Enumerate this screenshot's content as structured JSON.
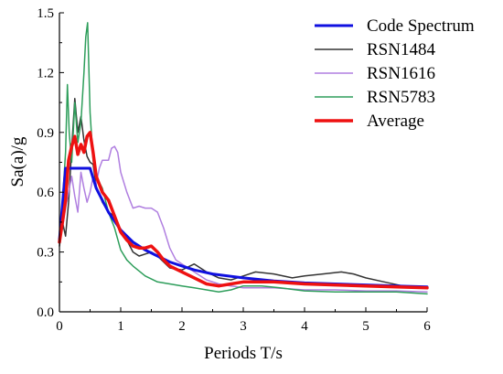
{
  "chart_data": {
    "type": "line",
    "title": "",
    "xlabel": "Periods T/s",
    "ylabel": "Sa(a)/g",
    "xlim": [
      0,
      6
    ],
    "ylim": [
      0,
      1.5
    ],
    "xticks": [
      "0",
      "1",
      "2",
      "3",
      "4",
      "5",
      "6"
    ],
    "yticks": [
      "0.0",
      "0.3",
      "0.6",
      "0.9",
      "1.2",
      "1.5"
    ],
    "grid": false,
    "legend": "top-right",
    "series": [
      {
        "name": "Code Spectrum",
        "color": "#1010e0",
        "width": 3,
        "x": [
          0,
          0.1,
          0.15,
          0.5,
          0.6,
          0.8,
          1.0,
          1.2,
          1.4,
          1.6,
          1.8,
          2.0,
          2.2,
          2.5,
          3.0,
          3.5,
          4.0,
          4.5,
          5.0,
          5.5,
          6.0
        ],
        "y": [
          0.36,
          0.72,
          0.72,
          0.72,
          0.62,
          0.5,
          0.41,
          0.35,
          0.31,
          0.28,
          0.25,
          0.23,
          0.21,
          0.19,
          0.17,
          0.155,
          0.145,
          0.14,
          0.135,
          0.13,
          0.125
        ]
      },
      {
        "name": "RSN1484",
        "color": "#333333",
        "width": 1.5,
        "x": [
          0,
          0.05,
          0.1,
          0.15,
          0.2,
          0.25,
          0.3,
          0.35,
          0.4,
          0.45,
          0.5,
          0.55,
          0.6,
          0.7,
          0.8,
          0.9,
          1.0,
          1.1,
          1.2,
          1.3,
          1.4,
          1.5,
          1.6,
          1.8,
          2.0,
          2.2,
          2.4,
          2.6,
          2.8,
          3.0,
          3.2,
          3.5,
          3.8,
          4.0,
          4.3,
          4.6,
          4.8,
          5.0,
          5.3,
          5.6,
          6.0
        ],
        "y": [
          0.33,
          0.45,
          0.38,
          0.55,
          0.82,
          1.07,
          0.9,
          0.98,
          0.86,
          0.78,
          0.75,
          0.74,
          0.63,
          0.55,
          0.5,
          0.48,
          0.4,
          0.36,
          0.3,
          0.28,
          0.29,
          0.3,
          0.28,
          0.22,
          0.21,
          0.24,
          0.2,
          0.17,
          0.16,
          0.18,
          0.2,
          0.19,
          0.17,
          0.18,
          0.19,
          0.2,
          0.19,
          0.17,
          0.15,
          0.13,
          0.12
        ]
      },
      {
        "name": "RSN1616",
        "color": "#b07fe0",
        "width": 1.5,
        "x": [
          0,
          0.05,
          0.1,
          0.15,
          0.2,
          0.25,
          0.3,
          0.35,
          0.4,
          0.45,
          0.5,
          0.55,
          0.6,
          0.65,
          0.7,
          0.8,
          0.85,
          0.9,
          0.95,
          1.0,
          1.1,
          1.2,
          1.3,
          1.4,
          1.5,
          1.6,
          1.7,
          1.8,
          1.9,
          2.0,
          2.2,
          2.4,
          2.6,
          2.8,
          3.0,
          3.5,
          4.0,
          4.5,
          5.0,
          5.5,
          6.0
        ],
        "y": [
          0.35,
          0.42,
          0.52,
          0.6,
          0.68,
          0.58,
          0.5,
          0.7,
          0.62,
          0.55,
          0.6,
          0.68,
          0.64,
          0.72,
          0.76,
          0.76,
          0.82,
          0.83,
          0.8,
          0.7,
          0.6,
          0.52,
          0.53,
          0.52,
          0.52,
          0.5,
          0.42,
          0.32,
          0.26,
          0.24,
          0.2,
          0.16,
          0.14,
          0.13,
          0.12,
          0.12,
          0.11,
          0.11,
          0.105,
          0.105,
          0.1
        ]
      },
      {
        "name": "RSN5783",
        "color": "#2e9e5b",
        "width": 1.5,
        "x": [
          0,
          0.05,
          0.1,
          0.13,
          0.16,
          0.2,
          0.25,
          0.3,
          0.35,
          0.4,
          0.43,
          0.46,
          0.5,
          0.55,
          0.6,
          0.7,
          0.8,
          0.9,
          1.0,
          1.1,
          1.2,
          1.4,
          1.6,
          1.8,
          2.0,
          2.2,
          2.4,
          2.6,
          2.8,
          3.0,
          3.3,
          3.6,
          4.0,
          4.5,
          5.0,
          5.5,
          6.0
        ],
        "y": [
          0.35,
          0.55,
          0.8,
          1.14,
          0.9,
          0.75,
          1.05,
          0.85,
          0.95,
          1.2,
          1.38,
          1.45,
          1.0,
          0.76,
          0.68,
          0.62,
          0.5,
          0.42,
          0.31,
          0.26,
          0.23,
          0.18,
          0.15,
          0.14,
          0.13,
          0.12,
          0.11,
          0.1,
          0.11,
          0.13,
          0.13,
          0.12,
          0.105,
          0.1,
          0.1,
          0.1,
          0.09
        ]
      },
      {
        "name": "Average",
        "color": "#ee1111",
        "width": 3.5,
        "x": [
          0,
          0.05,
          0.1,
          0.15,
          0.2,
          0.25,
          0.3,
          0.35,
          0.4,
          0.45,
          0.5,
          0.55,
          0.6,
          0.7,
          0.8,
          0.9,
          1.0,
          1.1,
          1.2,
          1.3,
          1.4,
          1.5,
          1.6,
          1.7,
          1.8,
          2.0,
          2.2,
          2.4,
          2.6,
          2.8,
          3.0,
          3.5,
          4.0,
          4.5,
          5.0,
          5.5,
          6.0
        ],
        "y": [
          0.35,
          0.45,
          0.56,
          0.76,
          0.83,
          0.88,
          0.79,
          0.84,
          0.8,
          0.88,
          0.9,
          0.8,
          0.68,
          0.6,
          0.56,
          0.48,
          0.4,
          0.36,
          0.33,
          0.32,
          0.32,
          0.33,
          0.3,
          0.26,
          0.23,
          0.2,
          0.17,
          0.14,
          0.13,
          0.14,
          0.15,
          0.15,
          0.14,
          0.135,
          0.13,
          0.125,
          0.12
        ]
      }
    ]
  }
}
